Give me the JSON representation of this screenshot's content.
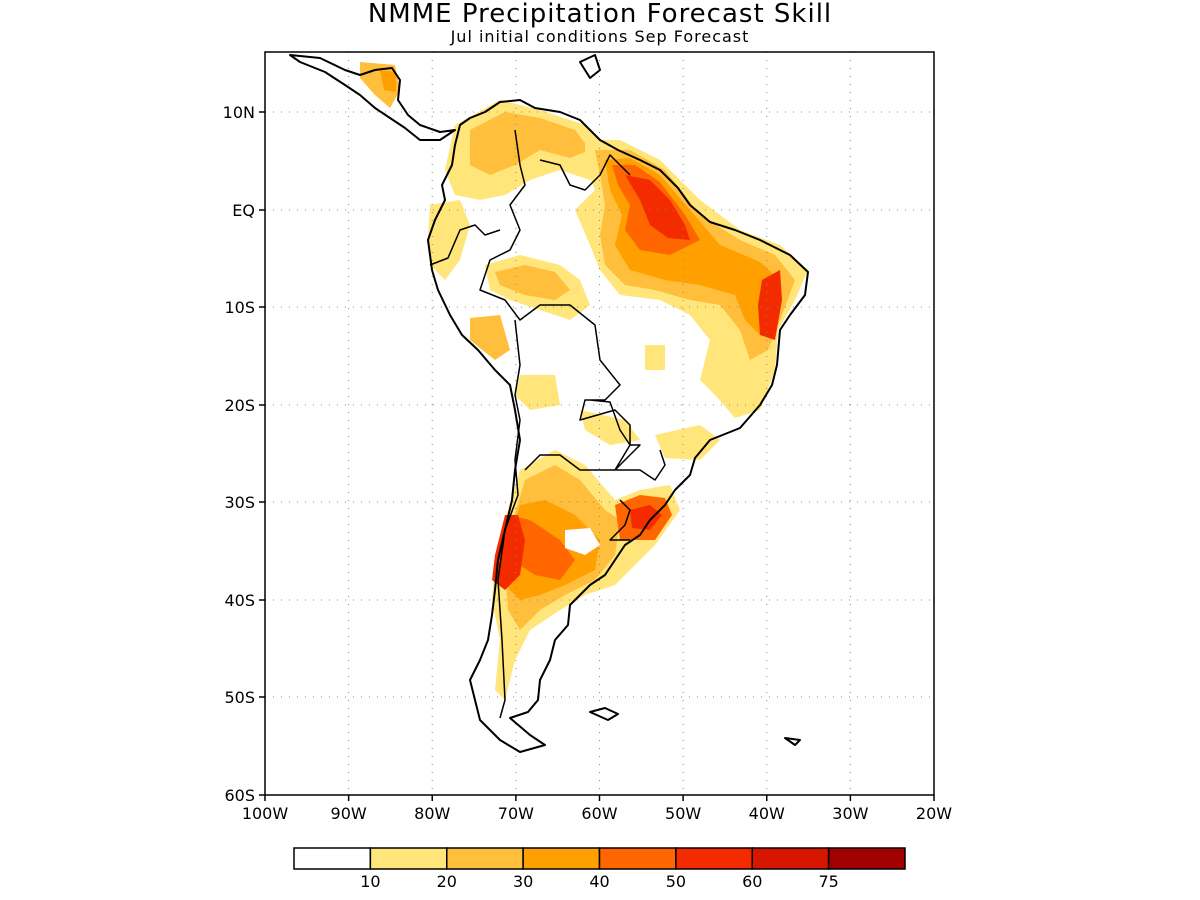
{
  "title": "NMME Precipitation Forecast Skill",
  "subtitle": "Jul initial conditions  Sep Forecast",
  "lat_labels": [
    "10N",
    "EQ",
    "10S",
    "20S",
    "30S",
    "40S",
    "50S",
    "60S"
  ],
  "lon_labels": [
    "100W",
    "90W",
    "80W",
    "70W",
    "60W",
    "50W",
    "40W",
    "30W",
    "20W"
  ],
  "colorbar": {
    "colors": [
      "#ffffff",
      "#ffe57a",
      "#ffbe3c",
      "#ff9f00",
      "#ff6600",
      "#f52b00",
      "#d81600",
      "#a00000"
    ],
    "labels": [
      "10",
      "20",
      "30",
      "40",
      "50",
      "60",
      "75"
    ]
  },
  "map": {
    "region": "South America",
    "lon_range": [
      -100,
      -20
    ],
    "lat_range": [
      -60,
      15
    ],
    "grid": "dotted"
  }
}
